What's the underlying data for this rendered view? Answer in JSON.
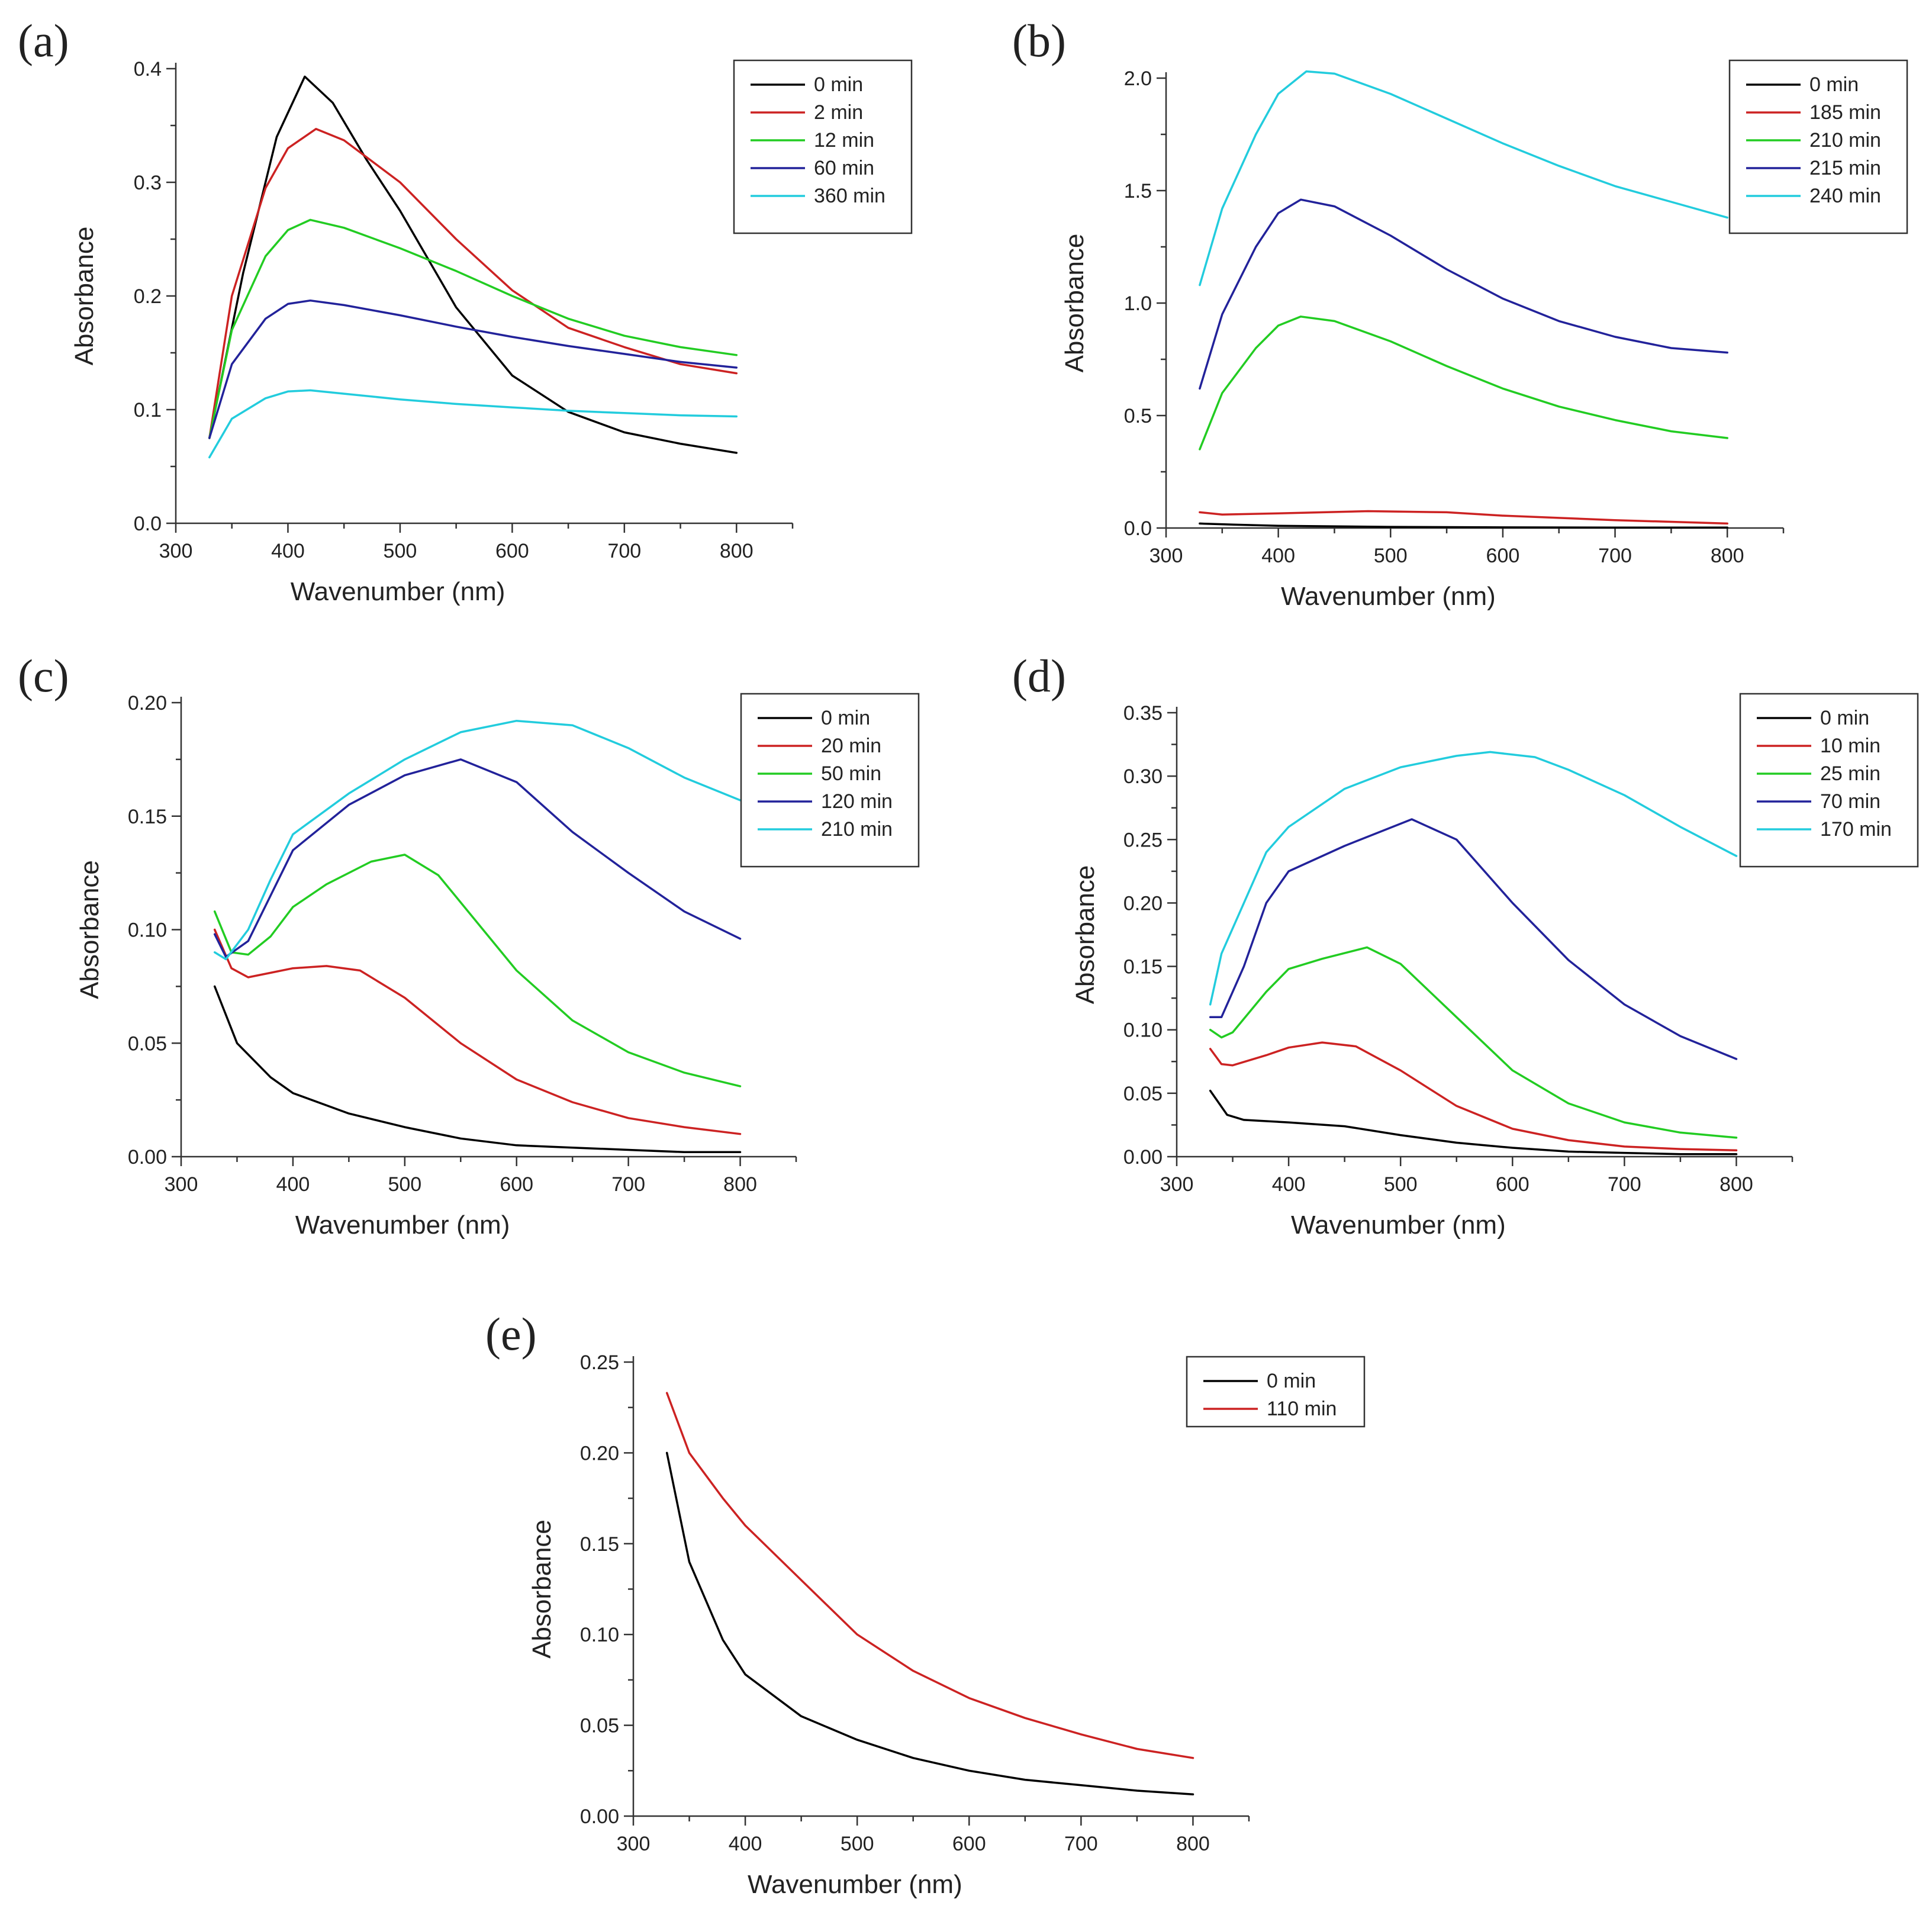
{
  "chart_data": [
    {
      "type": "line",
      "panel_label": "(a)",
      "xlabel": "Wavenumber (nm)",
      "ylabel": "Absorbance",
      "xlim": [
        300,
        850
      ],
      "ylim": [
        0,
        0.4
      ],
      "xticks": [
        300,
        400,
        500,
        600,
        700,
        800
      ],
      "xtick_labels": [
        "300",
        "400",
        "500",
        "600",
        "700",
        "800"
      ],
      "yticks": [
        0,
        0.1,
        0.2,
        0.3,
        0.4
      ],
      "ytick_labels": [
        "0.0",
        "0.1",
        "0.2",
        "0.3",
        "0.4"
      ],
      "legend_position": "top-right",
      "series": [
        {
          "name": "0 min",
          "color": "#000000",
          "x": [
            330,
            360,
            390,
            415,
            440,
            470,
            500,
            550,
            600,
            650,
            700,
            750,
            800
          ],
          "y": [
            0.075,
            0.22,
            0.34,
            0.393,
            0.37,
            0.32,
            0.275,
            0.19,
            0.13,
            0.098,
            0.08,
            0.07,
            0.062
          ]
        },
        {
          "name": "2 min",
          "color": "#cc2222",
          "x": [
            330,
            350,
            380,
            400,
            425,
            450,
            500,
            550,
            600,
            650,
            700,
            750,
            800
          ],
          "y": [
            0.075,
            0.2,
            0.295,
            0.33,
            0.347,
            0.337,
            0.3,
            0.25,
            0.205,
            0.172,
            0.155,
            0.14,
            0.132
          ]
        },
        {
          "name": "12 min",
          "color": "#22cc22",
          "x": [
            330,
            350,
            380,
            400,
            420,
            450,
            500,
            550,
            600,
            650,
            700,
            750,
            800
          ],
          "y": [
            0.075,
            0.17,
            0.235,
            0.258,
            0.267,
            0.26,
            0.242,
            0.222,
            0.2,
            0.18,
            0.165,
            0.155,
            0.148
          ]
        },
        {
          "name": "60 min",
          "color": "#22229a",
          "x": [
            330,
            350,
            380,
            400,
            420,
            450,
            500,
            550,
            600,
            650,
            700,
            750,
            800
          ],
          "y": [
            0.075,
            0.14,
            0.18,
            0.193,
            0.196,
            0.192,
            0.183,
            0.173,
            0.164,
            0.156,
            0.149,
            0.142,
            0.137
          ]
        },
        {
          "name": "360 min",
          "color": "#22ccdd",
          "x": [
            330,
            350,
            380,
            400,
            420,
            450,
            500,
            550,
            600,
            650,
            700,
            750,
            800
          ],
          "y": [
            0.058,
            0.092,
            0.11,
            0.116,
            0.117,
            0.114,
            0.109,
            0.105,
            0.102,
            0.099,
            0.097,
            0.095,
            0.094
          ]
        }
      ]
    },
    {
      "type": "line",
      "panel_label": "(b)",
      "xlabel": "Wavenumber (nm)",
      "ylabel": "Absorbance",
      "xlim": [
        300,
        850
      ],
      "ylim": [
        0,
        2.0
      ],
      "xticks": [
        300,
        400,
        500,
        600,
        700,
        800
      ],
      "xtick_labels": [
        "300",
        "400",
        "500",
        "600",
        "700",
        "800"
      ],
      "yticks": [
        0,
        0.5,
        1.0,
        1.5,
        2.0
      ],
      "ytick_labels": [
        "0.0",
        "0.5",
        "1.0",
        "1.5",
        "2.0"
      ],
      "legend_position": "top-right",
      "series": [
        {
          "name": "0 min",
          "color": "#000000",
          "x": [
            330,
            360,
            400,
            500,
            600,
            700,
            800
          ],
          "y": [
            0.02,
            0.015,
            0.01,
            0.005,
            0.003,
            0.002,
            0.002
          ]
        },
        {
          "name": "185 min",
          "color": "#cc2222",
          "x": [
            330,
            350,
            400,
            480,
            550,
            600,
            700,
            800
          ],
          "y": [
            0.07,
            0.06,
            0.065,
            0.075,
            0.07,
            0.055,
            0.035,
            0.02
          ]
        },
        {
          "name": "210 min",
          "color": "#22cc22",
          "x": [
            330,
            350,
            380,
            400,
            420,
            450,
            500,
            550,
            600,
            650,
            700,
            750,
            800
          ],
          "y": [
            0.35,
            0.6,
            0.8,
            0.9,
            0.94,
            0.92,
            0.83,
            0.72,
            0.62,
            0.54,
            0.48,
            0.43,
            0.4
          ]
        },
        {
          "name": "215 min",
          "color": "#22229a",
          "x": [
            330,
            350,
            380,
            400,
            420,
            450,
            500,
            550,
            600,
            650,
            700,
            750,
            800
          ],
          "y": [
            0.62,
            0.95,
            1.25,
            1.4,
            1.46,
            1.43,
            1.3,
            1.15,
            1.02,
            0.92,
            0.85,
            0.8,
            0.78
          ]
        },
        {
          "name": "240 min",
          "color": "#22ccdd",
          "x": [
            330,
            350,
            380,
            400,
            425,
            450,
            500,
            550,
            600,
            650,
            700,
            750,
            800
          ],
          "y": [
            1.08,
            1.42,
            1.75,
            1.93,
            2.03,
            2.02,
            1.93,
            1.82,
            1.71,
            1.61,
            1.52,
            1.45,
            1.38
          ]
        }
      ]
    },
    {
      "type": "line",
      "panel_label": "(c)",
      "xlabel": "Wavenumber (nm)",
      "ylabel": "Absorbance",
      "xlim": [
        300,
        850
      ],
      "ylim": [
        0,
        0.2
      ],
      "xticks": [
        300,
        400,
        500,
        600,
        700,
        800
      ],
      "xtick_labels": [
        "300",
        "400",
        "500",
        "600",
        "700",
        "800"
      ],
      "yticks": [
        0,
        0.05,
        0.1,
        0.15,
        0.2
      ],
      "ytick_labels": [
        "0.00",
        "0.05",
        "0.10",
        "0.15",
        "0.20"
      ],
      "legend_position": "top-right",
      "series": [
        {
          "name": "0 min",
          "color": "#000000",
          "x": [
            330,
            350,
            380,
            400,
            450,
            500,
            550,
            600,
            650,
            700,
            750,
            800
          ],
          "y": [
            0.075,
            0.05,
            0.035,
            0.028,
            0.019,
            0.013,
            0.008,
            0.005,
            0.004,
            0.003,
            0.002,
            0.002
          ]
        },
        {
          "name": "20 min",
          "color": "#cc2222",
          "x": [
            330,
            345,
            360,
            380,
            400,
            430,
            460,
            500,
            550,
            600,
            650,
            700,
            750,
            800
          ],
          "y": [
            0.1,
            0.083,
            0.079,
            0.081,
            0.083,
            0.084,
            0.082,
            0.07,
            0.05,
            0.034,
            0.024,
            0.017,
            0.013,
            0.01
          ]
        },
        {
          "name": "50 min",
          "color": "#22cc22",
          "x": [
            330,
            345,
            360,
            380,
            400,
            430,
            470,
            500,
            530,
            550,
            600,
            650,
            700,
            750,
            800
          ],
          "y": [
            0.108,
            0.09,
            0.089,
            0.097,
            0.11,
            0.12,
            0.13,
            0.133,
            0.124,
            0.112,
            0.082,
            0.06,
            0.046,
            0.037,
            0.031
          ]
        },
        {
          "name": "120 min",
          "color": "#22229a",
          "x": [
            330,
            340,
            360,
            380,
            400,
            450,
            500,
            550,
            600,
            650,
            700,
            750,
            800
          ],
          "y": [
            0.098,
            0.088,
            0.095,
            0.115,
            0.135,
            0.155,
            0.168,
            0.175,
            0.165,
            0.143,
            0.125,
            0.108,
            0.096
          ]
        },
        {
          "name": "210 min",
          "color": "#22ccdd",
          "x": [
            330,
            340,
            360,
            380,
            400,
            450,
            500,
            550,
            600,
            650,
            700,
            750,
            800
          ],
          "y": [
            0.09,
            0.087,
            0.1,
            0.122,
            0.142,
            0.16,
            0.175,
            0.187,
            0.192,
            0.19,
            0.18,
            0.167,
            0.157
          ]
        }
      ]
    },
    {
      "type": "line",
      "panel_label": "(d)",
      "xlabel": "Wavenumber (nm)",
      "ylabel": "Absorbance",
      "xlim": [
        300,
        850
      ],
      "ylim": [
        0,
        0.35
      ],
      "xticks": [
        300,
        400,
        500,
        600,
        700,
        800
      ],
      "xtick_labels": [
        "300",
        "400",
        "500",
        "600",
        "700",
        "800"
      ],
      "yticks": [
        0,
        0.05,
        0.1,
        0.15,
        0.2,
        0.25,
        0.3,
        0.35
      ],
      "ytick_labels": [
        "0.00",
        "0.05",
        "0.10",
        "0.15",
        "0.20",
        "0.25",
        "0.30",
        "0.35"
      ],
      "legend_position": "top-right",
      "series": [
        {
          "name": "0 min",
          "color": "#000000",
          "x": [
            330,
            345,
            360,
            400,
            450,
            500,
            550,
            600,
            650,
            700,
            750,
            800
          ],
          "y": [
            0.052,
            0.033,
            0.029,
            0.027,
            0.024,
            0.017,
            0.011,
            0.007,
            0.004,
            0.003,
            0.002,
            0.002
          ]
        },
        {
          "name": "10 min",
          "color": "#cc2222",
          "x": [
            330,
            340,
            350,
            380,
            400,
            430,
            460,
            500,
            550,
            600,
            650,
            700,
            750,
            800
          ],
          "y": [
            0.085,
            0.073,
            0.072,
            0.08,
            0.086,
            0.09,
            0.087,
            0.068,
            0.04,
            0.022,
            0.013,
            0.008,
            0.006,
            0.005
          ]
        },
        {
          "name": "25 min",
          "color": "#22cc22",
          "x": [
            330,
            340,
            350,
            380,
            400,
            430,
            470,
            500,
            550,
            600,
            650,
            700,
            750,
            800
          ],
          "y": [
            0.1,
            0.094,
            0.098,
            0.13,
            0.148,
            0.156,
            0.165,
            0.152,
            0.11,
            0.068,
            0.042,
            0.027,
            0.019,
            0.015
          ]
        },
        {
          "name": "70 min",
          "color": "#22229a",
          "x": [
            330,
            340,
            360,
            380,
            400,
            450,
            510,
            550,
            600,
            650,
            700,
            750,
            800
          ],
          "y": [
            0.11,
            0.11,
            0.15,
            0.2,
            0.225,
            0.245,
            0.266,
            0.25,
            0.2,
            0.155,
            0.12,
            0.095,
            0.077
          ]
        },
        {
          "name": "170 min",
          "color": "#22ccdd",
          "x": [
            330,
            340,
            360,
            380,
            400,
            450,
            500,
            550,
            580,
            620,
            650,
            700,
            750,
            800
          ],
          "y": [
            0.12,
            0.16,
            0.2,
            0.24,
            0.26,
            0.29,
            0.307,
            0.316,
            0.319,
            0.315,
            0.305,
            0.285,
            0.26,
            0.237
          ]
        }
      ]
    },
    {
      "type": "line",
      "panel_label": "(e)",
      "xlabel": "Wavenumber (nm)",
      "ylabel": "Absorbance",
      "xlim": [
        300,
        850
      ],
      "ylim": [
        0,
        0.25
      ],
      "xticks": [
        300,
        400,
        500,
        600,
        700,
        800
      ],
      "xtick_labels": [
        "300",
        "400",
        "500",
        "600",
        "700",
        "800"
      ],
      "yticks": [
        0,
        0.05,
        0.1,
        0.15,
        0.2,
        0.25
      ],
      "ytick_labels": [
        "0.00",
        "0.05",
        "0.10",
        "0.15",
        "0.20",
        "0.25"
      ],
      "legend_position": "top-right",
      "series": [
        {
          "name": "0 min",
          "color": "#000000",
          "x": [
            330,
            350,
            380,
            400,
            450,
            500,
            550,
            600,
            650,
            700,
            750,
            800
          ],
          "y": [
            0.2,
            0.14,
            0.097,
            0.078,
            0.055,
            0.042,
            0.032,
            0.025,
            0.02,
            0.017,
            0.014,
            0.012
          ]
        },
        {
          "name": "110 min",
          "color": "#cc2222",
          "x": [
            330,
            350,
            380,
            400,
            450,
            500,
            550,
            600,
            650,
            700,
            750,
            800
          ],
          "y": [
            0.233,
            0.2,
            0.175,
            0.16,
            0.13,
            0.1,
            0.08,
            0.065,
            0.054,
            0.045,
            0.037,
            0.032
          ]
        }
      ]
    }
  ]
}
